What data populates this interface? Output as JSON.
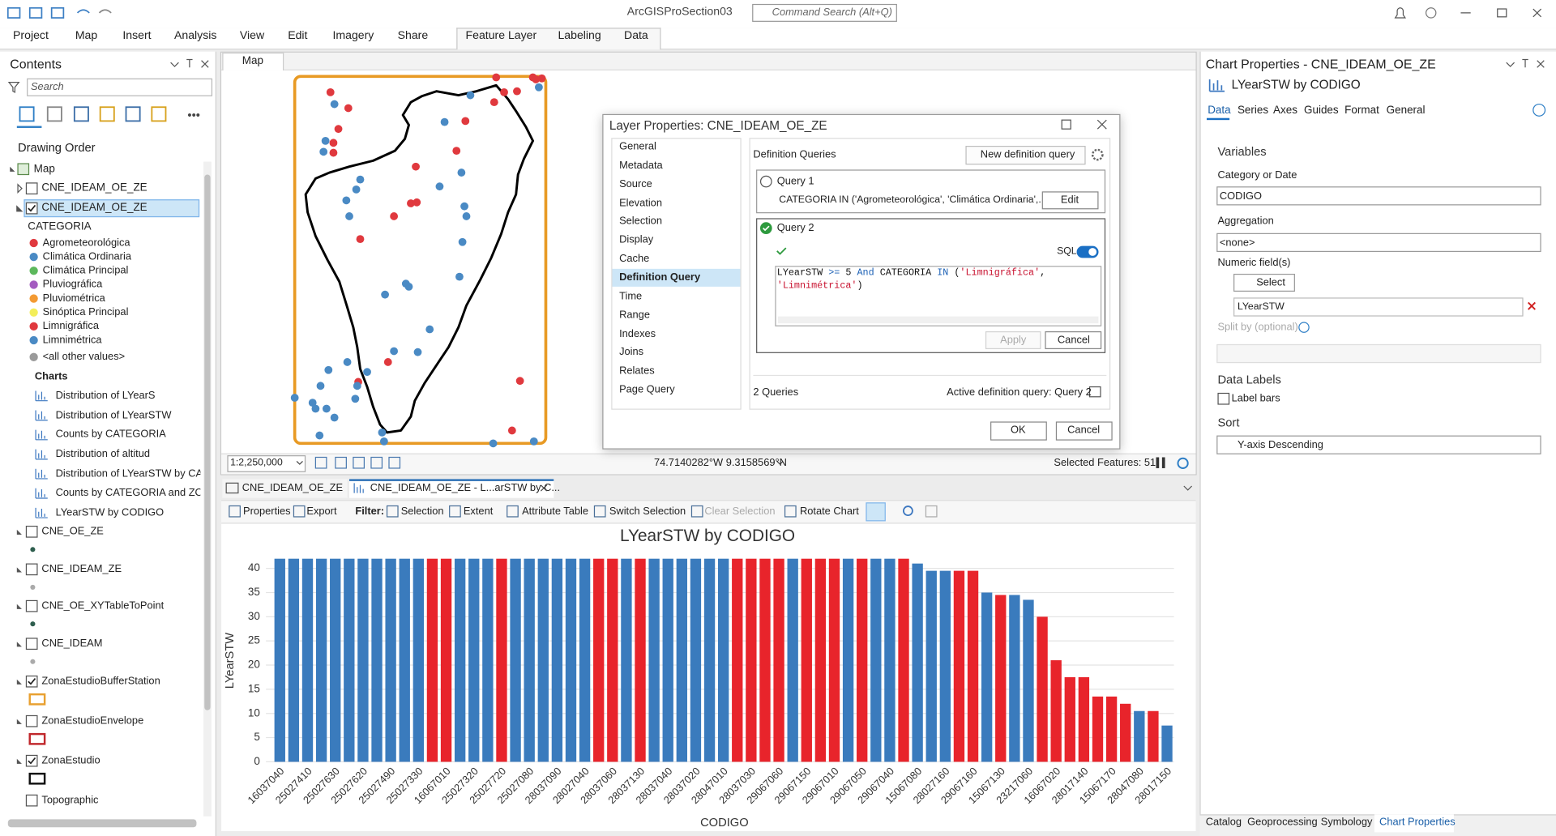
{
  "title_bar": {
    "app_title": "ArcGISProSection03",
    "command_search": "Command Search (Alt+Q)"
  },
  "ribbon": {
    "tabs": [
      "Project",
      "Map",
      "Insert",
      "Analysis",
      "View",
      "Edit",
      "Imagery",
      "Share",
      "Feature Layer",
      "Labeling",
      "Data"
    ]
  },
  "contents": {
    "title": "Contents",
    "search": "Search",
    "drawing_order": "Drawing Order",
    "map": "Map",
    "layers_top": [
      {
        "name": "CNE_IDEAM_OE_ZE",
        "checked": false
      },
      {
        "name": "CNE_IDEAM_OE_ZE",
        "checked": true
      }
    ],
    "legend_field": "CATEGORIA",
    "legend": [
      {
        "label": "Agrometeorológica",
        "color": "#e0393e"
      },
      {
        "label": "Climática Ordinaria",
        "color": "#4a8ac4"
      },
      {
        "label": "Climática Principal",
        "color": "#5cb85c"
      },
      {
        "label": "Pluviográfica",
        "color": "#a45cc0"
      },
      {
        "label": "Pluviométrica",
        "color": "#f39a33"
      },
      {
        "label": "Sinóptica Principal",
        "color": "#f3ee5a"
      },
      {
        "label": "Limnigráfica",
        "color": "#e0393e"
      },
      {
        "label": "Limnimétrica",
        "color": "#4a8ac4"
      },
      {
        "label": "<all other values>",
        "color": "#9a9a9a"
      }
    ],
    "charts_heading": "Charts",
    "charts": [
      "Distribution of LYearS",
      "Distribution of LYearSTW",
      "Counts by CATEGORIA",
      "Distribution of altitud",
      "Distribution of LYearSTW by CATEG",
      "Counts by CATEGORIA and ZONA",
      "LYearSTW by CODIGO"
    ],
    "layers": [
      {
        "name": "CNE_OE_ZE",
        "checked": false
      },
      {
        "name": "CNE_IDEAM_ZE",
        "checked": false
      },
      {
        "name": "CNE_OE_XYTableToPoint",
        "checked": false
      },
      {
        "name": "CNE_IDEAM",
        "checked": false
      },
      {
        "name": "ZonaEstudioBufferStation",
        "checked": true
      },
      {
        "name": "ZonaEstudioEnvelope",
        "checked": false
      },
      {
        "name": "ZonaEstudio",
        "checked": true
      },
      {
        "name": "Topographic",
        "checked": false
      }
    ]
  },
  "map_view": {
    "tab": "Map",
    "scale": "1:2,250,000",
    "coordinates": "74.7140282°W 9.3158569°N",
    "selected_features": "Selected Features: 51"
  },
  "dialog": {
    "title": "Layer Properties: CNE_IDEAM_OE_ZE",
    "nav": [
      "General",
      "Metadata",
      "Source",
      "Elevation",
      "Selection",
      "Display",
      "Cache",
      "Definition Query",
      "Time",
      "Range",
      "Indexes",
      "Joins",
      "Relates",
      "Page Query"
    ],
    "definition_queries": "Definition Queries",
    "new_query": "New definition query",
    "query1": {
      "name": "Query 1",
      "expression": "CATEGORIA IN ('Agrometeorológica', 'Climática Ordinaria',...",
      "edit": "Edit"
    },
    "query2": {
      "name": "Query 2",
      "sql_label": "SQL",
      "sql": [
        [
          {
            "text": "LYearSTW ",
            "color": "#111111"
          },
          {
            "text": ">=",
            "color": "#1a5fb4"
          },
          {
            "text": " 5 ",
            "color": "#111111"
          },
          {
            "text": "And",
            "color": "#1a5fb4"
          },
          {
            "text": " CATEGORIA ",
            "color": "#111111"
          },
          {
            "text": "IN",
            "color": "#1a5fb4"
          },
          {
            "text": " (",
            "color": "#111111"
          },
          {
            "text": "'Limnigráfica'",
            "color": "#c8102e"
          },
          {
            "text": ",",
            "color": "#111111"
          }
        ],
        [
          {
            "text": "'Limnimétrica'",
            "color": "#c8102e"
          },
          {
            "text": ")",
            "color": "#111111"
          }
        ]
      ],
      "apply": "Apply",
      "cancel": "Cancel"
    },
    "count": "2 Queries",
    "active": "Active definition query: Query 2",
    "ok": "OK",
    "cancel": "Cancel"
  },
  "chart_view": {
    "tabs": [
      "CNE_IDEAM_OE_ZE",
      "CNE_IDEAM_OE_ZE - L...arSTW by C..."
    ],
    "toolbar": {
      "properties": "Properties",
      "export": "Export",
      "filter": "Filter:",
      "selection": "Selection",
      "extent": "Extent",
      "attribute_table": "Attribute Table",
      "switch_selection": "Switch Selection",
      "clear_selection": "Clear Selection",
      "rotate_chart": "Rotate Chart"
    }
  },
  "chart_data": {
    "type": "bar",
    "title": "LYearSTW by CODIGO",
    "y_label": "LYearSTW",
    "x_label": "CODIGO",
    "categories": [
      "16037040",
      null,
      "25027410",
      null,
      "25027630",
      null,
      "25027620",
      null,
      "25027490",
      null,
      "25027330",
      null,
      "16067010",
      null,
      "25027320",
      null,
      "25027720",
      null,
      "25027080",
      null,
      "28037090",
      null,
      "28027040",
      null,
      "28037060",
      null,
      "28037130",
      null,
      "28037040",
      null,
      "28037020",
      null,
      "28047010",
      null,
      "28037030",
      null,
      "29067060",
      null,
      "29067150",
      null,
      "29067010",
      null,
      "29067050",
      null,
      "29067040",
      null,
      "15067080",
      null,
      "28027160",
      null,
      "29067160",
      null,
      "15067130",
      null,
      "23217060",
      null,
      "16067020",
      null,
      "28017140",
      null,
      "15067170",
      null,
      "28047080",
      null,
      "28017150"
    ],
    "values": [
      42,
      42,
      42,
      42,
      42,
      42,
      42,
      42,
      42,
      42,
      42,
      42,
      42,
      42,
      42,
      42,
      42,
      42,
      42,
      42,
      42,
      42,
      42,
      42,
      42,
      42,
      42,
      42,
      42,
      42,
      42,
      42,
      42,
      42,
      42,
      42,
      42,
      42,
      42,
      42,
      42,
      42,
      42,
      42,
      42,
      42,
      41,
      39.5,
      39.5,
      39.5,
      39.5,
      35,
      34.5,
      34.5,
      33.5,
      30,
      21,
      17.5,
      17.5,
      13.5,
      13.5,
      12,
      10.5,
      10.5,
      7.5
    ],
    "colors": [
      "#3a7bbd",
      "#3a7bbd",
      "#3a7bbd",
      "#3a7bbd",
      "#3a7bbd",
      "#3a7bbd",
      "#3a7bbd",
      "#3a7bbd",
      "#3a7bbd",
      "#3a7bbd",
      "#3a7bbd",
      "#e8242b",
      "#e8242b",
      "#3a7bbd",
      "#3a7bbd",
      "#3a7bbd",
      "#e8242b",
      "#3a7bbd",
      "#3a7bbd",
      "#3a7bbd",
      "#3a7bbd",
      "#3a7bbd",
      "#3a7bbd",
      "#e8242b",
      "#e8242b",
      "#3a7bbd",
      "#e8242b",
      "#3a7bbd",
      "#3a7bbd",
      "#3a7bbd",
      "#3a7bbd",
      "#3a7bbd",
      "#3a7bbd",
      "#e8242b",
      "#e8242b",
      "#e8242b",
      "#e8242b",
      "#3a7bbd",
      "#e8242b",
      "#e8242b",
      "#e8242b",
      "#3a7bbd",
      "#e8242b",
      "#3a7bbd",
      "#3a7bbd",
      "#e8242b",
      "#3a7bbd",
      "#3a7bbd",
      "#3a7bbd",
      "#e8242b",
      "#e8242b",
      "#3a7bbd",
      "#e8242b",
      "#3a7bbd",
      "#3a7bbd",
      "#e8242b",
      "#e8242b",
      "#e8242b",
      "#e8242b",
      "#e8242b",
      "#e8242b",
      "#e8242b",
      "#3a7bbd",
      "#e8242b",
      "#3a7bbd"
    ],
    "ylim": [
      0,
      44
    ],
    "yticks": [
      0,
      5,
      10,
      15,
      20,
      25,
      30,
      35,
      40
    ],
    "grid": true
  },
  "chart_properties": {
    "title": "Chart Properties - CNE_IDEAM_OE_ZE",
    "chart_name": "LYearSTW by CODIGO",
    "tabs": [
      "Data",
      "Series",
      "Axes",
      "Guides",
      "Format",
      "General"
    ],
    "variables": "Variables",
    "category_label": "Category or Date",
    "category": "CODIGO",
    "aggregation_label": "Aggregation",
    "aggregation": "<none>",
    "numeric_label": "Numeric field(s)",
    "select": "Select",
    "numeric_field": "LYearSTW",
    "split_by": "Split by (optional)",
    "data_labels": "Data Labels",
    "label_bars": "Label bars",
    "sort_label": "Sort",
    "sort": "Y-axis Descending"
  },
  "bottom_tabs": [
    "Catalog",
    "Geoprocessing",
    "Symbology",
    "Chart Properties"
  ]
}
